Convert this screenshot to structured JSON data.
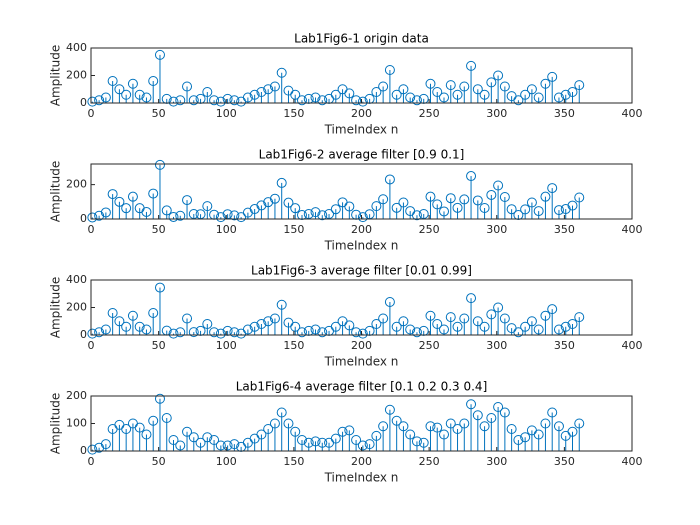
{
  "chart_data": [
    {
      "type": "stem",
      "title": "Lab1Fig6-1 origin data",
      "xlabel": "TimeIndex n",
      "ylabel": "Amplitude",
      "color": "#0072bd",
      "xlim": [
        0,
        400
      ],
      "ylim": [
        0,
        400
      ],
      "xticks": [
        0,
        50,
        100,
        150,
        200,
        250,
        300,
        350,
        400
      ],
      "yticks": [
        0,
        200,
        400
      ],
      "x": [
        1,
        6,
        11,
        16,
        21,
        26,
        31,
        36,
        41,
        46,
        51,
        56,
        61,
        66,
        71,
        76,
        81,
        86,
        91,
        96,
        101,
        106,
        111,
        116,
        121,
        126,
        131,
        136,
        141,
        146,
        151,
        156,
        161,
        166,
        171,
        176,
        181,
        186,
        191,
        196,
        201,
        206,
        211,
        216,
        221,
        226,
        231,
        236,
        241,
        246,
        251,
        256,
        261,
        266,
        271,
        276,
        281,
        286,
        291,
        296,
        301,
        306,
        311,
        316,
        321,
        326,
        331,
        336,
        341,
        346,
        351,
        356,
        361
      ],
      "values": [
        10,
        20,
        40,
        160,
        100,
        60,
        140,
        60,
        40,
        160,
        350,
        30,
        10,
        20,
        120,
        20,
        30,
        80,
        20,
        10,
        30,
        20,
        10,
        40,
        60,
        80,
        100,
        120,
        220,
        90,
        60,
        20,
        30,
        40,
        20,
        30,
        60,
        100,
        70,
        20,
        10,
        30,
        80,
        120,
        240,
        60,
        100,
        40,
        20,
        30,
        140,
        80,
        40,
        130,
        60,
        120,
        270,
        100,
        60,
        150,
        200,
        120,
        50,
        20,
        60,
        100,
        40,
        140,
        190,
        40,
        60,
        80,
        130
      ]
    },
    {
      "type": "stem",
      "title": "Lab1Fig6-2 average filter [0.9 0.1]",
      "xlabel": "TimeIndex n",
      "ylabel": "Amplitude",
      "color": "#0072bd",
      "xlim": [
        0,
        400
      ],
      "ylim": [
        0,
        320
      ],
      "xticks": [
        0,
        50,
        100,
        150,
        200,
        250,
        300,
        350,
        400
      ],
      "yticks": [
        0,
        200
      ],
      "x": [
        1,
        6,
        11,
        16,
        21,
        26,
        31,
        36,
        41,
        46,
        51,
        56,
        61,
        66,
        71,
        76,
        81,
        86,
        91,
        96,
        101,
        106,
        111,
        116,
        121,
        126,
        131,
        136,
        141,
        146,
        151,
        156,
        161,
        166,
        171,
        176,
        181,
        186,
        191,
        196,
        201,
        206,
        211,
        216,
        221,
        226,
        231,
        236,
        241,
        246,
        251,
        256,
        261,
        266,
        271,
        276,
        281,
        286,
        291,
        296,
        301,
        306,
        311,
        316,
        321,
        326,
        331,
        336,
        341,
        346,
        351,
        356,
        361
      ],
      "values": [
        9,
        19,
        38,
        145,
        100,
        63,
        130,
        63,
        41,
        148,
        315,
        50,
        12,
        19,
        110,
        29,
        28,
        75,
        25,
        11,
        28,
        21,
        11,
        37,
        58,
        79,
        98,
        118,
        210,
        95,
        63,
        23,
        29,
        40,
        22,
        29,
        57,
        97,
        73,
        25,
        11,
        28,
        75,
        115,
        230,
        65,
        96,
        46,
        22,
        29,
        130,
        85,
        44,
        121,
        65,
        114,
        250,
        108,
        64,
        140,
        195,
        128,
        57,
        23,
        56,
        96,
        46,
        130,
        180,
        52,
        58,
        78,
        125
      ]
    },
    {
      "type": "stem",
      "title": "Lab1Fig6-3 average filter [0.01 0.99]",
      "xlabel": "TimeIndex n",
      "ylabel": "Amplitude",
      "color": "#0072bd",
      "xlim": [
        0,
        400
      ],
      "ylim": [
        0,
        400
      ],
      "xticks": [
        0,
        50,
        100,
        150,
        200,
        250,
        300,
        350,
        400
      ],
      "yticks": [
        0,
        200,
        400
      ],
      "x": [
        1,
        6,
        11,
        16,
        21,
        26,
        31,
        36,
        41,
        46,
        51,
        56,
        61,
        66,
        71,
        76,
        81,
        86,
        91,
        96,
        101,
        106,
        111,
        116,
        121,
        126,
        131,
        136,
        141,
        146,
        151,
        156,
        161,
        166,
        171,
        176,
        181,
        186,
        191,
        196,
        201,
        206,
        211,
        216,
        221,
        226,
        231,
        236,
        241,
        246,
        251,
        256,
        261,
        266,
        271,
        276,
        281,
        286,
        291,
        296,
        301,
        306,
        311,
        316,
        321,
        326,
        331,
        336,
        341,
        346,
        351,
        356,
        361
      ],
      "values": [
        10,
        20,
        40,
        160,
        100,
        60,
        140,
        60,
        40,
        160,
        345,
        32,
        10,
        20,
        120,
        21,
        30,
        80,
        20,
        10,
        30,
        20,
        10,
        40,
        60,
        80,
        100,
        120,
        220,
        90,
        60,
        20,
        30,
        40,
        20,
        30,
        60,
        100,
        70,
        20,
        10,
        30,
        80,
        120,
        240,
        60,
        100,
        40,
        20,
        30,
        140,
        80,
        40,
        130,
        60,
        120,
        268,
        100,
        60,
        150,
        200,
        120,
        50,
        20,
        60,
        100,
        40,
        140,
        188,
        40,
        60,
        80,
        130
      ]
    },
    {
      "type": "stem",
      "title": "Lab1Fig6-4 average filter [0.1 0.2 0.3 0.4]",
      "xlabel": "TimeIndex n",
      "ylabel": "Amplitude",
      "color": "#0072bd",
      "xlim": [
        0,
        400
      ],
      "ylim": [
        0,
        200
      ],
      "xticks": [
        0,
        50,
        100,
        150,
        200,
        250,
        300,
        350,
        400
      ],
      "yticks": [
        0,
        100,
        200
      ],
      "x": [
        1,
        6,
        11,
        16,
        21,
        26,
        31,
        36,
        41,
        46,
        51,
        56,
        61,
        66,
        71,
        76,
        81,
        86,
        91,
        96,
        101,
        106,
        111,
        116,
        121,
        126,
        131,
        136,
        141,
        146,
        151,
        156,
        161,
        166,
        171,
        176,
        181,
        186,
        191,
        196,
        201,
        206,
        211,
        216,
        221,
        226,
        231,
        236,
        241,
        246,
        251,
        256,
        261,
        266,
        271,
        276,
        281,
        286,
        291,
        296,
        301,
        306,
        311,
        316,
        321,
        326,
        331,
        336,
        341,
        346,
        351,
        356,
        361
      ],
      "values": [
        5,
        12,
        25,
        80,
        95,
        80,
        100,
        85,
        60,
        110,
        190,
        120,
        40,
        20,
        70,
        50,
        30,
        50,
        40,
        20,
        20,
        25,
        15,
        30,
        45,
        60,
        80,
        100,
        140,
        100,
        70,
        40,
        30,
        35,
        30,
        30,
        45,
        70,
        75,
        40,
        20,
        25,
        55,
        90,
        150,
        110,
        90,
        60,
        35,
        30,
        90,
        85,
        60,
        100,
        80,
        100,
        170,
        130,
        90,
        120,
        160,
        140,
        80,
        40,
        50,
        75,
        60,
        100,
        140,
        90,
        55,
        70,
        100
      ]
    }
  ]
}
